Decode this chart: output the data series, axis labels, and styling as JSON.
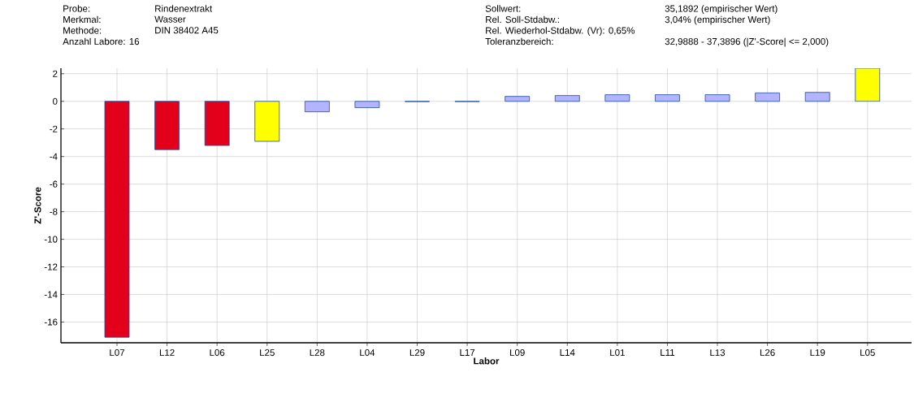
{
  "chart_data": {
    "type": "bar",
    "xlabel": "Labor",
    "ylabel": "Z'-Score",
    "annotations": [
      "Probe:",
      "Merkmal:",
      "Methode:",
      "Anzahl Labore: 16",
      "Rindenextrakt",
      "Wasser",
      "DIN 38402 A45",
      "Sollwert:",
      "Rel. Soll-Stdabw.:",
      "Rel. Wiederhol-Stdabw. (Vr): 0,65%",
      "Toleranzbereich:",
      "35,1892  (empirischer Wert)",
      "3,04% (empirischer Wert)",
      "32,9888 - 37,3896  (|Z'-Score| <= 2,000)"
    ],
    "categories": [
      "L07",
      "L12",
      "L06",
      "L25",
      "L28",
      "L04",
      "L29",
      "L17",
      "L09",
      "L14",
      "L01",
      "L11",
      "L13",
      "L26",
      "L19",
      "L05"
    ],
    "values": [
      -17.1,
      -3.5,
      -3.2,
      -2.9,
      -0.76,
      -0.46,
      -0.02,
      -0.02,
      0.36,
      0.42,
      0.48,
      0.48,
      0.48,
      0.61,
      0.65,
      2.4
    ],
    "colors": [
      "#e2001a",
      "#e2001a",
      "#e2001a",
      "#ffff00",
      "#b3b3ff",
      "#b3b3ff",
      "#b3b3ff",
      "#b3b3ff",
      "#b3b3ff",
      "#b3b3ff",
      "#b3b3ff",
      "#b3b3ff",
      "#b3b3ff",
      "#b3b3ff",
      "#b3b3ff",
      "#ffff00"
    ],
    "ylim": [
      -17.5,
      2.4
    ],
    "yticks": [
      2,
      0,
      -2,
      -4,
      -6,
      -8,
      -10,
      -12,
      -14,
      -16
    ],
    "grid": true
  }
}
